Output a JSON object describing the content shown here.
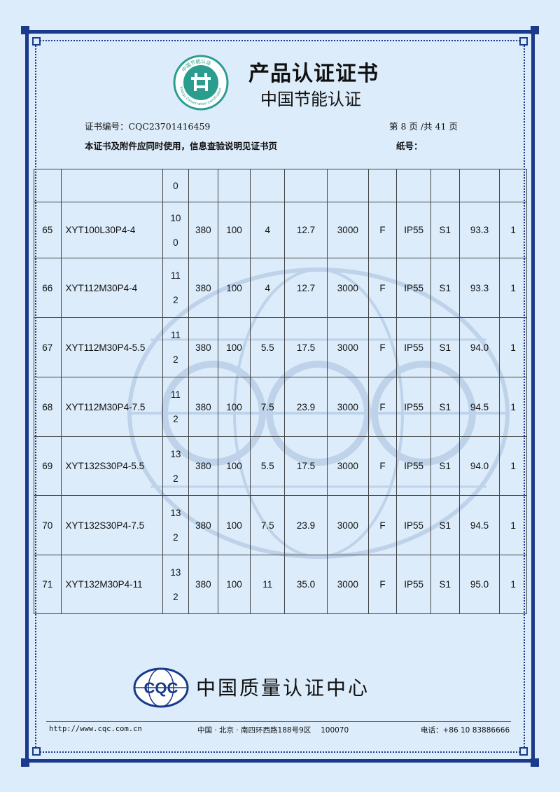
{
  "header": {
    "title": "产品认证证书",
    "subtitle": "中国节能认证",
    "logo_text": "中国节能认证",
    "logo_arc_text": "Energy Conservation Certification"
  },
  "info": {
    "cert_no": "证书编号：CQC23701416459",
    "page": "第 8 页 /共 41 页",
    "note": "本证书及附件应同时使用，信息查验说明见证书页",
    "paper_no": "纸号："
  },
  "table": {
    "partial_row": [
      "",
      "",
      "0",
      "",
      "",
      "",
      "",
      "",
      "",
      "",
      "",
      "",
      ""
    ],
    "rows": [
      [
        "65",
        "XYT100L30P4-4",
        "10",
        "0",
        "380",
        "100",
        "4",
        "12.7",
        "3000",
        "F",
        "IP55",
        "S1",
        "93.3",
        "1"
      ],
      [
        "66",
        "XYT112M30P4-4",
        "11",
        "2",
        "380",
        "100",
        "4",
        "12.7",
        "3000",
        "F",
        "IP55",
        "S1",
        "93.3",
        "1"
      ],
      [
        "67",
        "XYT112M30P4-5.5",
        "11",
        "2",
        "380",
        "100",
        "5.5",
        "17.5",
        "3000",
        "F",
        "IP55",
        "S1",
        "94.0",
        "1"
      ],
      [
        "68",
        "XYT112M30P4-7.5",
        "11",
        "2",
        "380",
        "100",
        "7.5",
        "23.9",
        "3000",
        "F",
        "IP55",
        "S1",
        "94.5",
        "1"
      ],
      [
        "69",
        "XYT132S30P4-5.5",
        "13",
        "2",
        "380",
        "100",
        "5.5",
        "17.5",
        "3000",
        "F",
        "IP55",
        "S1",
        "94.0",
        "1"
      ],
      [
        "70",
        "XYT132S30P4-7.5",
        "13",
        "2",
        "380",
        "100",
        "7.5",
        "23.9",
        "3000",
        "F",
        "IP55",
        "S1",
        "94.5",
        "1"
      ],
      [
        "71",
        "XYT132M30P4-11",
        "13",
        "2",
        "380",
        "100",
        "11",
        "35.0",
        "3000",
        "F",
        "IP55",
        "S1",
        "95.0",
        "1"
      ]
    ]
  },
  "issuer": {
    "logo_text": "CQC",
    "name": "中国质量认证中心"
  },
  "footer": {
    "url": "http://www.cqc.com.cn",
    "address": "中国 · 北京 · 南四环西路188号9区　 100070",
    "tel": "电话：+86 10 83886666"
  },
  "colors": {
    "background": "#dcecfa",
    "border": "#1a3a8c",
    "logo_green": "#2a9d8f"
  }
}
